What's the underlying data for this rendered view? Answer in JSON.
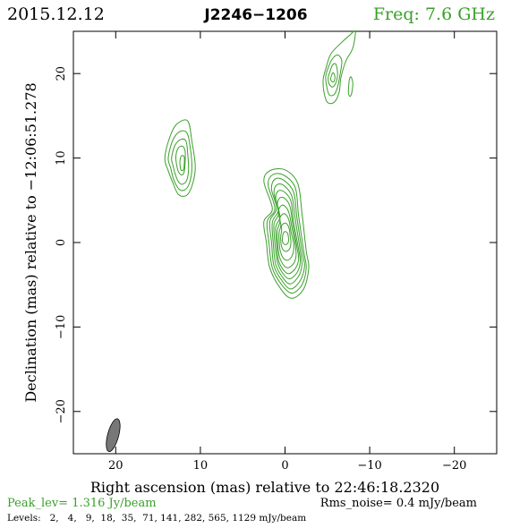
{
  "header": {
    "date": "2015.12.12",
    "source": "J2246−1206",
    "frequency": "Freq: 7.6 GHz"
  },
  "chart_data": {
    "type": "contour",
    "xlabel": "Right ascension (mas) relative to 22:46:18.2320",
    "ylabel": "Declination (mas) relative to −12:06:51.278",
    "xlim": [
      25,
      -25
    ],
    "ylim": [
      -25,
      25
    ],
    "x_ticks": [
      20,
      10,
      0,
      -10,
      -20
    ],
    "x_tick_labels": [
      "20",
      "10",
      "0",
      "−10",
      "−20"
    ],
    "y_ticks": [
      20,
      10,
      0,
      -10,
      -20
    ],
    "y_tick_labels": [
      "20",
      "10",
      "0",
      "−10",
      "−20"
    ],
    "grid": false,
    "contour_color": "#3aa02a",
    "beam": {
      "x": 20.3,
      "y": -22.8,
      "major_mas": 4.0,
      "minor_mas": 1.3,
      "pa_deg": 15,
      "color": "#777777"
    },
    "components": [
      {
        "center": [
          0.2,
          0.5
        ],
        "contours": [
          [
            [
              1.5,
              4.0
            ],
            [
              2.5,
              7.2
            ],
            [
              1.8,
              8.5
            ],
            [
              0.0,
              8.6
            ],
            [
              -1.5,
              7.0
            ],
            [
              -2.0,
              3.5
            ],
            [
              -2.5,
              -1.0
            ],
            [
              -2.8,
              -3.0
            ],
            [
              -2.2,
              -5.5
            ],
            [
              -0.8,
              -6.6
            ],
            [
              0.5,
              -5.5
            ],
            [
              1.8,
              -3.0
            ],
            [
              2.2,
              0.0
            ],
            [
              2.5,
              2.5
            ]
          ],
          [
            [
              1.2,
              4.0
            ],
            [
              2.0,
              6.8
            ],
            [
              1.5,
              8.0
            ],
            [
              0.2,
              8.0
            ],
            [
              -1.2,
              6.5
            ],
            [
              -1.6,
              3.2
            ],
            [
              -2.2,
              -1.0
            ],
            [
              -2.5,
              -3.0
            ],
            [
              -2.0,
              -5.0
            ],
            [
              -0.8,
              -6.0
            ],
            [
              0.4,
              -5.0
            ],
            [
              1.5,
              -3.0
            ],
            [
              1.9,
              0.0
            ],
            [
              2.1,
              2.5
            ]
          ],
          [
            [
              1.0,
              4.0
            ],
            [
              1.6,
              6.3
            ],
            [
              1.2,
              7.5
            ],
            [
              0.2,
              7.4
            ],
            [
              -1.0,
              6.0
            ],
            [
              -1.4,
              3.0
            ],
            [
              -2.0,
              -1.0
            ],
            [
              -2.3,
              -2.8
            ],
            [
              -1.8,
              -4.5
            ],
            [
              -0.7,
              -5.5
            ],
            [
              0.3,
              -4.6
            ],
            [
              1.3,
              -2.8
            ],
            [
              1.6,
              0.0
            ],
            [
              1.8,
              2.5
            ]
          ],
          [
            [
              0.8,
              3.8
            ],
            [
              1.3,
              5.8
            ],
            [
              1.0,
              6.8
            ],
            [
              0.2,
              6.8
            ],
            [
              -0.8,
              5.5
            ],
            [
              -1.2,
              2.8
            ],
            [
              -1.8,
              -1.0
            ],
            [
              -2.0,
              -2.6
            ],
            [
              -1.6,
              -4.0
            ],
            [
              -0.6,
              -4.9
            ],
            [
              0.3,
              -4.1
            ],
            [
              1.1,
              -2.6
            ],
            [
              1.4,
              0.0
            ],
            [
              1.5,
              2.4
            ]
          ],
          [
            [
              0.7,
              3.5
            ],
            [
              1.1,
              5.2
            ],
            [
              0.8,
              6.1
            ],
            [
              0.1,
              6.0
            ],
            [
              -0.7,
              4.9
            ],
            [
              -1.0,
              2.5
            ],
            [
              -1.6,
              -0.8
            ],
            [
              -1.8,
              -2.3
            ],
            [
              -1.4,
              -3.6
            ],
            [
              -0.5,
              -4.3
            ],
            [
              0.3,
              -3.6
            ],
            [
              0.9,
              -2.3
            ],
            [
              1.2,
              0.0
            ],
            [
              1.3,
              2.2
            ]
          ],
          [
            [
              0.6,
              3.0
            ],
            [
              0.9,
              4.5
            ],
            [
              0.6,
              5.3
            ],
            [
              0.0,
              5.2
            ],
            [
              -0.6,
              4.2
            ],
            [
              -0.9,
              2.2
            ],
            [
              -1.4,
              -0.5
            ],
            [
              -1.6,
              -2.0
            ],
            [
              -1.2,
              -3.1
            ],
            [
              -0.4,
              -3.7
            ],
            [
              0.3,
              -3.1
            ],
            [
              0.8,
              -2.0
            ],
            [
              1.0,
              0.0
            ],
            [
              1.1,
              1.8
            ]
          ],
          [
            [
              0.6,
              2.5
            ],
            [
              0.8,
              3.7
            ],
            [
              0.4,
              4.4
            ],
            [
              -0.1,
              4.2
            ],
            [
              -0.5,
              3.4
            ],
            [
              -0.8,
              1.8
            ],
            [
              -1.2,
              -0.2
            ],
            [
              -1.3,
              -1.6
            ],
            [
              -1.0,
              -2.5
            ],
            [
              -0.3,
              -3.0
            ],
            [
              0.3,
              -2.5
            ],
            [
              0.7,
              -1.5
            ],
            [
              0.9,
              0.2
            ],
            [
              0.9,
              1.5
            ]
          ],
          [
            [
              0.5,
              2.0
            ],
            [
              0.6,
              2.9
            ],
            [
              0.2,
              3.4
            ],
            [
              -0.2,
              3.2
            ],
            [
              -0.5,
              2.5
            ],
            [
              -0.7,
              1.3
            ],
            [
              -1.0,
              0.0
            ],
            [
              -1.0,
              -1.0
            ],
            [
              -0.7,
              -1.8
            ],
            [
              -0.2,
              -2.1
            ],
            [
              0.3,
              -1.7
            ],
            [
              0.6,
              -0.8
            ],
            [
              0.7,
              0.4
            ],
            [
              0.7,
              1.2
            ]
          ],
          [
            [
              0.4,
              1.4
            ],
            [
              0.4,
              2.0
            ],
            [
              0.0,
              2.3
            ],
            [
              -0.3,
              2.1
            ],
            [
              -0.5,
              1.6
            ],
            [
              -0.6,
              0.8
            ],
            [
              -0.7,
              0.1
            ],
            [
              -0.6,
              -0.6
            ],
            [
              -0.3,
              -1.0
            ],
            [
              0.1,
              -1.0
            ],
            [
              0.4,
              -0.5
            ],
            [
              0.5,
              0.2
            ],
            [
              0.5,
              0.8
            ]
          ],
          [
            [
              0.2,
              1.1
            ],
            [
              0.0,
              1.3
            ],
            [
              -0.3,
              1.1
            ],
            [
              -0.4,
              0.6
            ],
            [
              -0.4,
              0.1
            ],
            [
              -0.2,
              -0.2
            ],
            [
              0.1,
              -0.2
            ],
            [
              0.3,
              0.1
            ],
            [
              0.3,
              0.6
            ]
          ]
        ]
      },
      {
        "center": [
          11.8,
          9.8
        ],
        "contours": [
          [
            [
              14.2,
              10.0
            ],
            [
              13.6,
              12.5
            ],
            [
              12.8,
              14.0
            ],
            [
              11.5,
              14.4
            ],
            [
              11.0,
              12.0
            ],
            [
              10.6,
              9.0
            ],
            [
              10.9,
              7.0
            ],
            [
              11.6,
              5.6
            ],
            [
              12.6,
              5.7
            ],
            [
              13.3,
              7.2
            ],
            [
              13.8,
              8.5
            ]
          ],
          [
            [
              13.8,
              10.0
            ],
            [
              13.3,
              12.0
            ],
            [
              12.5,
              13.1
            ],
            [
              11.6,
              13.0
            ],
            [
              11.2,
              11.3
            ],
            [
              11.0,
              8.8
            ],
            [
              11.3,
              7.0
            ],
            [
              11.9,
              6.2
            ],
            [
              12.6,
              6.4
            ],
            [
              13.2,
              7.6
            ],
            [
              13.5,
              8.8
            ]
          ],
          [
            [
              13.4,
              10.0
            ],
            [
              13.0,
              11.5
            ],
            [
              12.3,
              12.2
            ],
            [
              11.7,
              12.0
            ],
            [
              11.5,
              10.6
            ],
            [
              11.4,
              8.7
            ],
            [
              11.6,
              7.4
            ],
            [
              12.1,
              6.9
            ],
            [
              12.6,
              7.2
            ],
            [
              13.0,
              8.2
            ],
            [
              13.2,
              9.0
            ]
          ],
          [
            [
              12.9,
              10.2
            ],
            [
              12.6,
              11.2
            ],
            [
              12.1,
              11.4
            ],
            [
              11.8,
              10.8
            ],
            [
              11.8,
              9.6
            ],
            [
              11.9,
              8.4
            ],
            [
              12.2,
              8.0
            ],
            [
              12.6,
              8.4
            ],
            [
              12.8,
              9.2
            ]
          ],
          [
            [
              12.4,
              9.8
            ],
            [
              12.2,
              10.3
            ],
            [
              11.9,
              10.1
            ],
            [
              11.9,
              9.3
            ],
            [
              12.0,
              8.6
            ],
            [
              12.3,
              8.6
            ],
            [
              12.4,
              9.2
            ]
          ]
        ]
      },
      {
        "center": [
          -5.6,
          19.5
        ],
        "contours": [
          [
            [
              -4.8,
              20.5
            ],
            [
              -5.4,
              22.3
            ],
            [
              -6.6,
              23.6
            ],
            [
              -7.6,
              24.5
            ],
            [
              -8.3,
              25.0
            ],
            [
              -8.0,
              23.0
            ],
            [
              -7.2,
              21.5
            ],
            [
              -6.6,
              19.5
            ],
            [
              -6.4,
              17.8
            ],
            [
              -5.8,
              16.6
            ],
            [
              -5.0,
              16.6
            ],
            [
              -4.6,
              17.8
            ],
            [
              -4.5,
              19.3
            ]
          ],
          [
            [
              -5.0,
              20.4
            ],
            [
              -5.5,
              21.6
            ],
            [
              -6.2,
              22.2
            ],
            [
              -6.7,
              21.5
            ],
            [
              -6.5,
              19.9
            ],
            [
              -6.2,
              18.4
            ],
            [
              -5.8,
              17.5
            ],
            [
              -5.2,
              17.5
            ],
            [
              -4.9,
              18.6
            ],
            [
              -4.8,
              19.6
            ]
          ],
          [
            [
              -5.3,
              20.2
            ],
            [
              -5.6,
              21.0
            ],
            [
              -6.0,
              21.1
            ],
            [
              -6.2,
              20.0
            ],
            [
              -6.0,
              18.9
            ],
            [
              -5.6,
              18.4
            ],
            [
              -5.2,
              18.8
            ],
            [
              -5.1,
              19.5
            ]
          ],
          [
            [
              -5.5,
              19.8
            ],
            [
              -5.7,
              20.1
            ],
            [
              -5.9,
              19.6
            ],
            [
              -5.8,
              19.1
            ],
            [
              -5.6,
              19.0
            ],
            [
              -5.4,
              19.3
            ]
          ],
          [
            [
              -7.5,
              18.2
            ],
            [
              -7.6,
              19.3
            ],
            [
              -7.8,
              19.6
            ],
            [
              -8.0,
              18.9
            ],
            [
              -7.9,
              17.8
            ],
            [
              -7.7,
              17.3
            ],
            [
              -7.5,
              17.6
            ]
          ]
        ]
      }
    ]
  },
  "footer": {
    "peak_level": "Peak_lev=  1.316 Jy/beam",
    "rms_noise": "Rms_noise=  0.4 mJy/beam",
    "levels": "Levels:   2,   4,   9,  18,  35,  71, 141, 282, 565, 1129 mJy/beam"
  }
}
